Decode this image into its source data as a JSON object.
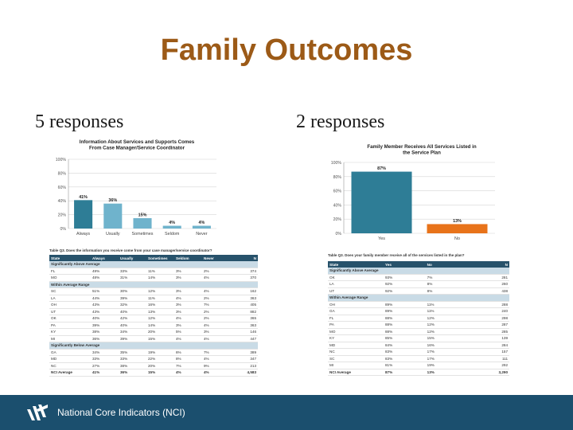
{
  "slide": {
    "title": "Family Outcomes",
    "left_heading": "5 responses",
    "right_heading": "2 responses",
    "footer_text": "National Core Indicators (NCI)",
    "colors": {
      "title": "#9c5a17",
      "footer": "#1b4f6e",
      "bar_dark": "#2e7d96",
      "bar_light": "#6fb3cc",
      "bar_orange": "#e8731a",
      "table_header": "#27526b"
    }
  },
  "chart_data": [
    {
      "type": "bar",
      "title": "Information About Services and Supports Comes From Case Manager/Service Coordinator",
      "categories": [
        "Always",
        "Usually",
        "Sometimes",
        "Seldom",
        "Never"
      ],
      "values": [
        41,
        36,
        15,
        4,
        4
      ],
      "value_labels": [
        "41%",
        "36%",
        "15%",
        "4%",
        "4%"
      ],
      "yticks": [
        "100%",
        "80%",
        "60%",
        "40%",
        "20%",
        "0%"
      ],
      "ylim": [
        0,
        100
      ],
      "grid": true
    },
    {
      "type": "bar",
      "title": "Family Member Receives All Services Listed in the Service Plan",
      "categories": [
        "Yes",
        "No"
      ],
      "values": [
        87,
        13
      ],
      "value_labels": [
        "87%",
        "13%"
      ],
      "yticks": [
        "100%",
        "80%",
        "60%",
        "40%",
        "20%",
        "0%"
      ],
      "ylim": [
        0,
        100
      ],
      "grid": true
    },
    {
      "type": "table",
      "caption": "Table Q3. Does the information you receive come from your case manager/service coordinator?",
      "columns": [
        "State",
        "Always",
        "Usually",
        "Sometimes",
        "Seldom",
        "Never",
        "N"
      ],
      "rows": [
        {
          "section": "Significantly Above Average"
        },
        {
          "cells": [
            "FL",
            "49%",
            "33%",
            "11%",
            "3%",
            "2%",
            "374"
          ]
        },
        {
          "cells": [
            "MO",
            "48%",
            "31%",
            "14%",
            "3%",
            "4%",
            "370"
          ]
        },
        {
          "section": "Within Average Range"
        },
        {
          "cells": [
            "SC",
            "51%",
            "30%",
            "12%",
            "3%",
            "4%",
            "162"
          ]
        },
        {
          "cells": [
            "LA",
            "44%",
            "39%",
            "11%",
            "4%",
            "2%",
            "363"
          ]
        },
        {
          "cells": [
            "OH",
            "43%",
            "32%",
            "16%",
            "3%",
            "7%",
            "405"
          ]
        },
        {
          "cells": [
            "UT",
            "43%",
            "40%",
            "13%",
            "3%",
            "2%",
            "882"
          ]
        },
        {
          "cells": [
            "OK",
            "40%",
            "42%",
            "12%",
            "4%",
            "2%",
            "365"
          ]
        },
        {
          "cells": [
            "PA",
            "39%",
            "40%",
            "14%",
            "3%",
            "4%",
            "363"
          ]
        },
        {
          "cells": [
            "KY",
            "38%",
            "34%",
            "20%",
            "5%",
            "3%",
            "146"
          ]
        },
        {
          "cells": [
            "MI",
            "36%",
            "39%",
            "15%",
            "4%",
            "4%",
            "447"
          ]
        },
        {
          "section": "Significantly Below Average"
        },
        {
          "cells": [
            "GA",
            "34%",
            "35%",
            "19%",
            "6%",
            "7%",
            "389"
          ]
        },
        {
          "cells": [
            "MD",
            "33%",
            "33%",
            "22%",
            "8%",
            "4%",
            "347"
          ]
        },
        {
          "cells": [
            "NC",
            "27%",
            "38%",
            "20%",
            "7%",
            "9%",
            "213"
          ]
        },
        {
          "avg": true,
          "cells": [
            "NCI Average",
            "41%",
            "36%",
            "15%",
            "4%",
            "4%",
            "4,583"
          ]
        }
      ]
    },
    {
      "type": "table",
      "caption": "Table Q3. Does your family member receive all of the services listed in the plan?",
      "columns": [
        "State",
        "Yes",
        "No",
        "N"
      ],
      "rows": [
        {
          "section": "Significantly Above Average"
        },
        {
          "cells": [
            "OK",
            "93%",
            "7%",
            "281"
          ]
        },
        {
          "cells": [
            "LA",
            "92%",
            "8%",
            "260"
          ]
        },
        {
          "cells": [
            "UT",
            "92%",
            "8%",
            "438"
          ]
        },
        {
          "section": "Within Average Range"
        },
        {
          "cells": [
            "OH",
            "89%",
            "11%",
            "288"
          ]
        },
        {
          "cells": [
            "GA",
            "89%",
            "11%",
            "240"
          ]
        },
        {
          "cells": [
            "FL",
            "88%",
            "12%",
            "298"
          ]
        },
        {
          "cells": [
            "PA",
            "88%",
            "12%",
            "287"
          ]
        },
        {
          "cells": [
            "MO",
            "88%",
            "12%",
            "285"
          ]
        },
        {
          "cells": [
            "KY",
            "85%",
            "15%",
            "139"
          ]
        },
        {
          "cells": [
            "MD",
            "84%",
            "16%",
            "284"
          ]
        },
        {
          "cells": [
            "NC",
            "83%",
            "17%",
            "157"
          ]
        },
        {
          "cells": [
            "SC",
            "83%",
            "17%",
            "111"
          ]
        },
        {
          "cells": [
            "MI",
            "81%",
            "19%",
            "292"
          ]
        },
        {
          "avg": true,
          "cells": [
            "NCI Average",
            "87%",
            "13%",
            "3,290"
          ]
        }
      ]
    }
  ]
}
